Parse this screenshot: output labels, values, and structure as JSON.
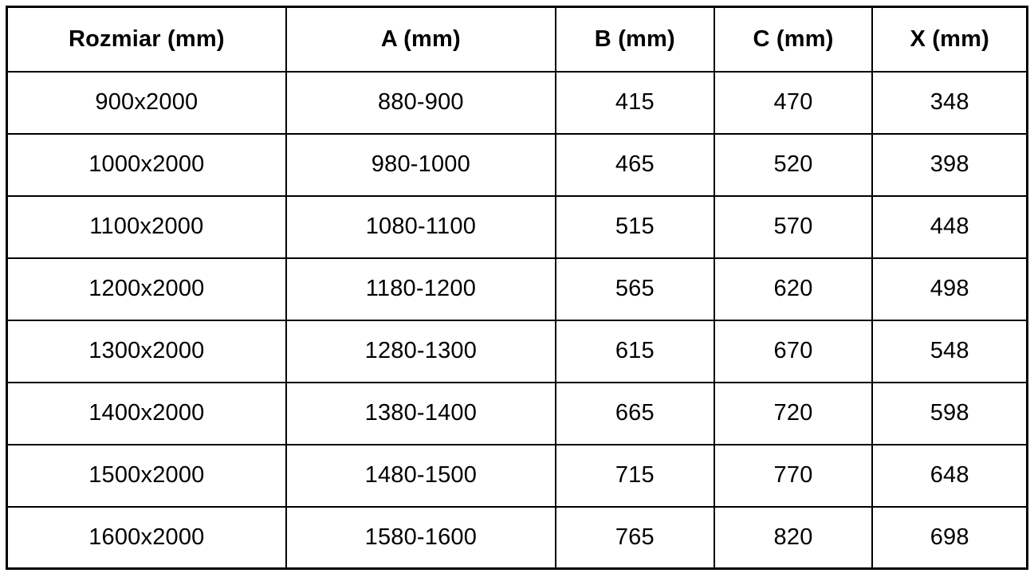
{
  "table": {
    "headers": [
      "Rozmiar (mm)",
      "A (mm)",
      "B (mm)",
      "C (mm)",
      "X (mm)"
    ],
    "rows": [
      [
        "900x2000",
        "880-900",
        "415",
        "470",
        "348"
      ],
      [
        "1000x2000",
        "980-1000",
        "465",
        "520",
        "398"
      ],
      [
        "1100x2000",
        "1080-1100",
        "515",
        "570",
        "448"
      ],
      [
        "1200x2000",
        "1180-1200",
        "565",
        "620",
        "498"
      ],
      [
        "1300x2000",
        "1280-1300",
        "615",
        "670",
        "548"
      ],
      [
        "1400x2000",
        "1380-1400",
        "665",
        "720",
        "598"
      ],
      [
        "1500x2000",
        "1480-1500",
        "715",
        "770",
        "648"
      ],
      [
        "1600x2000",
        "1580-1600",
        "765",
        "820",
        "698"
      ]
    ],
    "colors": {
      "border": "#000000",
      "text": "#000000",
      "background": "#ffffff"
    }
  }
}
